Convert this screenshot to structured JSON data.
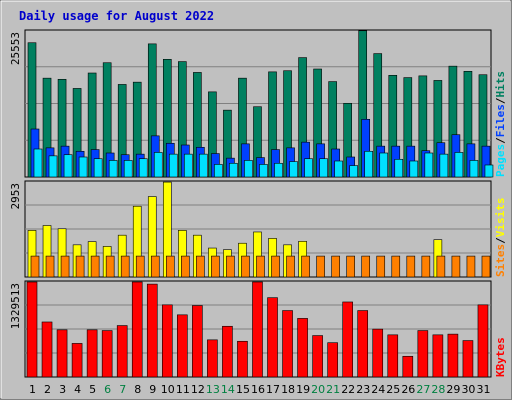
{
  "chart_data": {
    "type": "bar",
    "title": "Daily usage for August 2022",
    "categories": [
      "1",
      "2",
      "3",
      "4",
      "5",
      "6",
      "7",
      "8",
      "9",
      "10",
      "11",
      "12",
      "13",
      "14",
      "15",
      "16",
      "17",
      "18",
      "19",
      "20",
      "21",
      "22",
      "23",
      "24",
      "25",
      "26",
      "27",
      "28",
      "29",
      "30",
      "31"
    ],
    "weekend_days": [
      "6",
      "7",
      "13",
      "14",
      "20",
      "21",
      "27",
      "28"
    ],
    "colors": {
      "hits": "#008060",
      "files": "#0040ff",
      "pages": "#00e0ff",
      "visits": "#ffff00",
      "sites": "#ff8000",
      "kbytes": "#ff0000",
      "weekday_label": "#000000",
      "weekend_label": "#008040",
      "title": "#0000cc"
    },
    "panels": [
      {
        "name": "hits-files-pages",
        "ymax_label": "25553",
        "ymax": 25553,
        "labels": [
          {
            "text": "Hits",
            "color": "#008060"
          },
          {
            "text": "Files",
            "color": "#0040ff"
          },
          {
            "text": "Pages",
            "color": "#00e0ff"
          }
        ],
        "series": [
          {
            "name": "Hits",
            "values": [
              23500,
              17300,
              17100,
              15500,
              18200,
              20000,
              16200,
              16600,
              23300,
              20600,
              20200,
              18300,
              14900,
              11700,
              17300,
              12300,
              18400,
              18600,
              20900,
              18900,
              16700,
              12900,
              25600,
              21600,
              17800,
              17400,
              17700,
              16900,
              19400,
              18500,
              17900
            ]
          },
          {
            "name": "Files",
            "values": [
              8400,
              5100,
              5400,
              4500,
              4800,
              4200,
              3900,
              4000,
              7200,
              5900,
              5600,
              5200,
              4100,
              3300,
              5800,
              3400,
              4800,
              5100,
              6100,
              5800,
              4900,
              3500,
              10100,
              5400,
              5400,
              5400,
              4600,
              6000,
              7400,
              5800,
              5400
            ]
          },
          {
            "name": "Pages",
            "values": [
              4900,
              3700,
              3900,
              3500,
              3200,
              2900,
              2900,
              3200,
              4300,
              4000,
              4000,
              4000,
              2200,
              2400,
              2900,
              2200,
              2400,
              2700,
              3200,
              3200,
              2800,
              2000,
              4500,
              4200,
              3100,
              2800,
              4200,
              4000,
              4300,
              2900,
              2100
            ]
          }
        ]
      },
      {
        "name": "visits-sites",
        "ymax_label": "2953",
        "ymax": 2953,
        "labels": [
          {
            "text": "Visits",
            "color": "#ffff00"
          },
          {
            "text": "Sites",
            "color": "#ff8000"
          }
        ],
        "series": [
          {
            "name": "Visits",
            "values": [
              1450,
              1600,
              1500,
              1000,
              1100,
              950,
              1300,
              2200,
              2500,
              2950,
              1450,
              1300,
              900,
              850,
              1050,
              1400,
              1200,
              1000,
              1110,
              0,
              0,
              0,
              0,
              0,
              0,
              0,
              0,
              1160,
              0,
              0,
              0
            ]
          },
          {
            "name": "Sites",
            "values": [
              650,
              650,
              650,
              650,
              650,
              650,
              650,
              650,
              650,
              650,
              650,
              650,
              650,
              650,
              650,
              650,
              650,
              650,
              650,
              650,
              650,
              650,
              650,
              650,
              650,
              650,
              650,
              650,
              650,
              650,
              650
            ]
          }
        ]
      },
      {
        "name": "kbytes",
        "ymax_label": "1329513",
        "ymax": 1329513,
        "labels": [
          {
            "text": "KBytes",
            "color": "#ff0000"
          }
        ],
        "series": [
          {
            "name": "KBytes",
            "values": [
              1329513,
              770000,
              660000,
              470000,
              660000,
              650000,
              720000,
              1329513,
              1300000,
              1010000,
              870000,
              1000000,
              520000,
              710000,
              500000,
              1329513,
              1110000,
              930000,
              820000,
              580000,
              480000,
              1050000,
              930000,
              670000,
              590000,
              290000,
              650000,
              590000,
              600000,
              510000,
              1010000
            ]
          }
        ]
      }
    ]
  }
}
